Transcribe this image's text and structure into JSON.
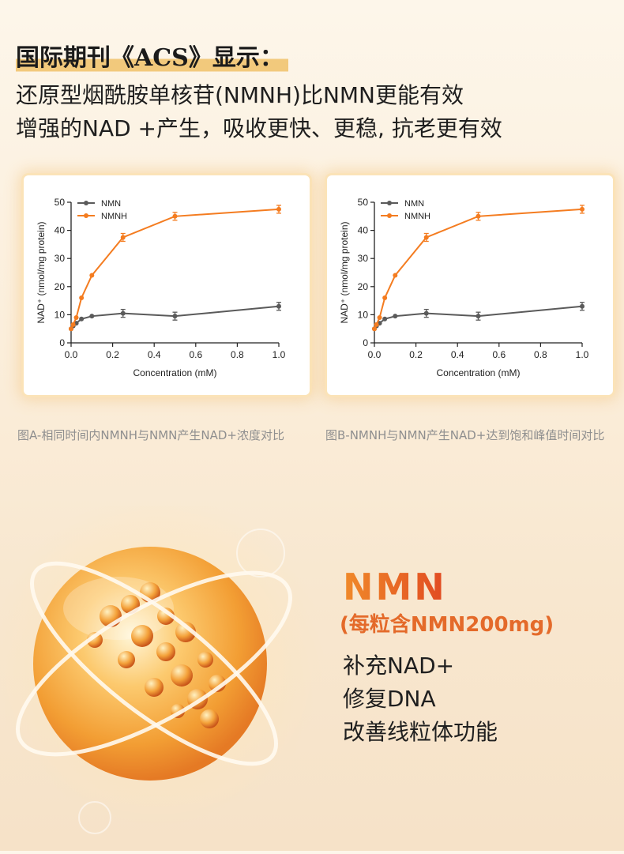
{
  "header": {
    "title": "国际期刊《ACS》显示：",
    "lines": [
      "还原型烟酰胺单核苷(NMNH)比NMN更能有效",
      "增强的NAD +产生，吸收更快、更稳, 抗老更有效"
    ]
  },
  "chart_data": [
    {
      "type": "line",
      "xlabel": "Concentration (mM)",
      "ylabel": "NAD⁺ (nmol/mg protein)",
      "xlim": [
        0,
        1.0
      ],
      "ylim": [
        0,
        50
      ],
      "xticks": [
        "0.0",
        "0.2",
        "0.4",
        "0.6",
        "0.8",
        "1.0"
      ],
      "yticks": [
        "0",
        "10",
        "20",
        "30",
        "40",
        "50"
      ],
      "legend_position": "top-left",
      "series": [
        {
          "name": "NMN",
          "color": "#5a5a5a",
          "x": [
            0,
            0.01,
            0.025,
            0.05,
            0.1,
            0.25,
            0.5,
            1.0
          ],
          "y": [
            5,
            6,
            7,
            8.5,
            9.5,
            10.5,
            9.5,
            13
          ]
        },
        {
          "name": "NMNH",
          "color": "#f47c20",
          "x": [
            0,
            0.01,
            0.025,
            0.05,
            0.1,
            0.25,
            0.5,
            1.0
          ],
          "y": [
            5,
            6.5,
            9,
            16,
            24,
            37.5,
            45,
            47.5
          ]
        }
      ]
    },
    {
      "type": "line",
      "xlabel": "Concentration (mM)",
      "ylabel": "NAD⁺ (nmol/mg protein)",
      "xlim": [
        0,
        1.0
      ],
      "ylim": [
        0,
        50
      ],
      "xticks": [
        "0.0",
        "0.2",
        "0.4",
        "0.6",
        "0.8",
        "1.0"
      ],
      "yticks": [
        "0",
        "10",
        "20",
        "30",
        "40",
        "50"
      ],
      "legend_position": "top-left",
      "series": [
        {
          "name": "NMN",
          "color": "#5a5a5a",
          "x": [
            0,
            0.01,
            0.025,
            0.05,
            0.1,
            0.25,
            0.5,
            1.0
          ],
          "y": [
            5,
            6,
            7,
            8.5,
            9.5,
            10.5,
            9.5,
            13
          ]
        },
        {
          "name": "NMNH",
          "color": "#f47c20",
          "x": [
            0,
            0.01,
            0.025,
            0.05,
            0.1,
            0.25,
            0.5,
            1.0
          ],
          "y": [
            5,
            6.5,
            9,
            16,
            24,
            37.5,
            45,
            47.5
          ]
        }
      ]
    }
  ],
  "captions": [
    "图A-相同时间内NMNH与NMN产生NAD+浓度对比",
    "图B-NMNH与NMN产生NAD+达到饱和峰值时间对比"
  ],
  "product": {
    "name": "NMN",
    "dose": "(每粒含NMN200mg)",
    "benefits": [
      "补充NAD+",
      "修复DNA",
      "改善线粒体功能"
    ]
  }
}
